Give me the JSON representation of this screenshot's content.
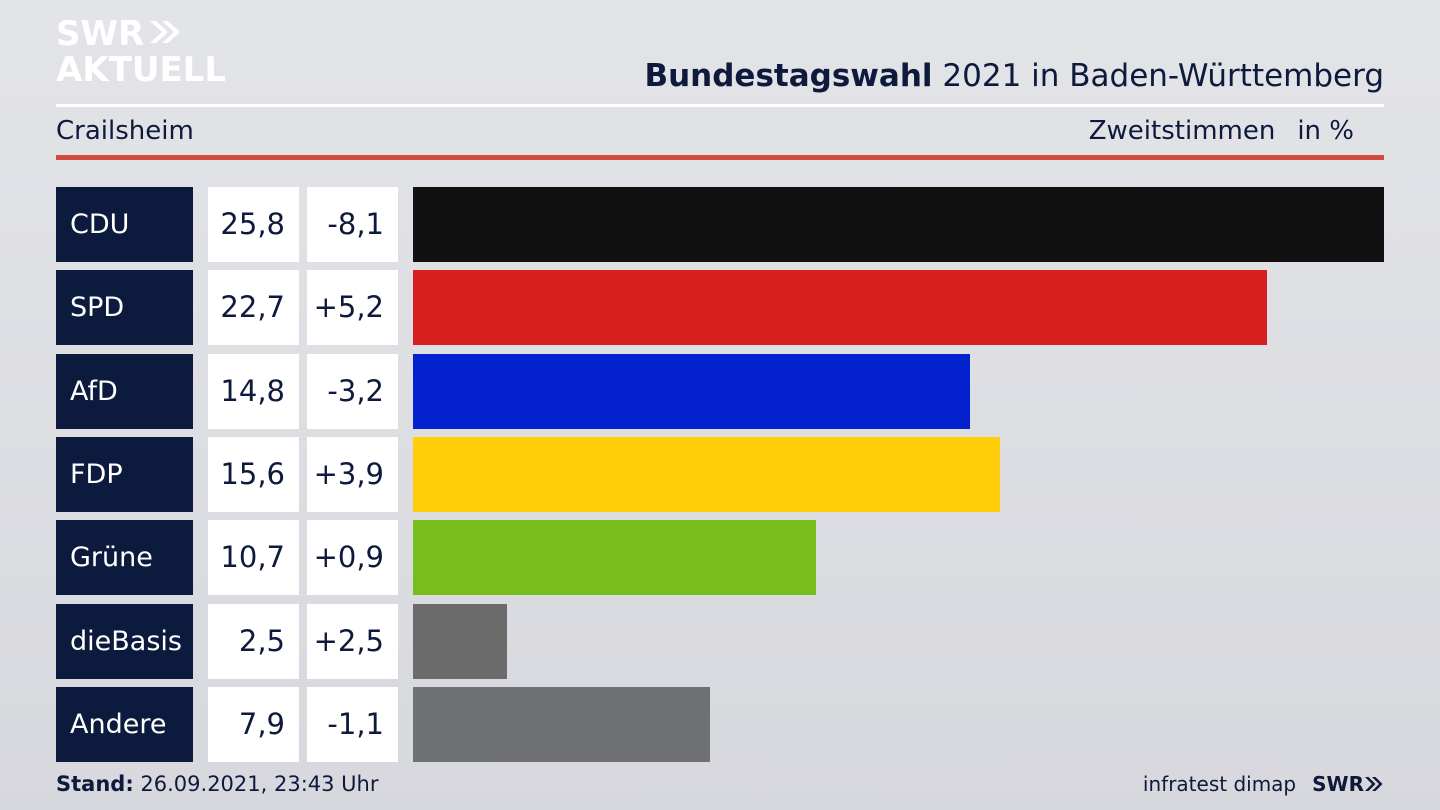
{
  "logo": {
    "line1": "SWR",
    "line2": "AKTUELL"
  },
  "header": {
    "title_bold": "Bundestagswahl",
    "title_rest": " 2021 in Baden-Württemberg"
  },
  "subheader": {
    "region": "Crailsheim",
    "measure": "Zweitstimmen",
    "unit": "in %"
  },
  "footer": {
    "stand_label": "Stand:",
    "stand_value": " 26.09.2021, 23:43 Uhr",
    "source": "infratest dimap",
    "brand": "SWR"
  },
  "chart_data": {
    "type": "bar",
    "orientation": "horizontal",
    "title": "Bundestagswahl 2021 in Baden-Württemberg",
    "subtitle": "Crailsheim",
    "ylabel": "Zweitstimmen in %",
    "categories": [
      "CDU",
      "SPD",
      "AfD",
      "FDP",
      "Grüne",
      "dieBasis",
      "Andere"
    ],
    "values": [
      25.8,
      22.7,
      14.8,
      15.6,
      10.7,
      2.5,
      7.9
    ],
    "value_labels": [
      "25,8",
      "22,7",
      "14,8",
      "15,6",
      "10,7",
      "2,5",
      "7,9"
    ],
    "diff_labels": [
      "-8,1",
      "+5,2",
      "-3,2",
      "+3,9",
      "+0,9",
      "+2,5",
      "-1,1"
    ],
    "colors": [
      "#111111",
      "#d71f1f",
      "#0321cc",
      "#ffcd0a",
      "#79bd1d",
      "#6b6b6b",
      "#707172"
    ],
    "xlim": [
      0,
      25.8
    ],
    "grid": false
  }
}
